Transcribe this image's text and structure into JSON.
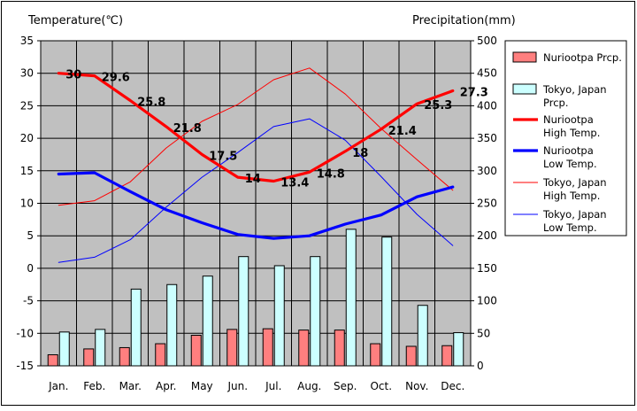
{
  "chart_data": {
    "type": "bar+line",
    "y_left_label": "Temperature(℃)",
    "y_right_label": "Precipitation(mm)",
    "y_left_range": [
      -15,
      35
    ],
    "y_left_ticks": [
      "35",
      "30",
      "25",
      "20",
      "15",
      "10",
      "5",
      "0",
      "-5",
      "-10",
      "-15"
    ],
    "y_right_range": [
      0,
      500
    ],
    "y_right_ticks": [
      "500",
      "450",
      "400",
      "350",
      "300",
      "250",
      "200",
      "150",
      "100",
      "50",
      "0"
    ],
    "grid": true,
    "legend_position": "right",
    "categories": [
      "Jan.",
      "Feb.",
      "Mar.",
      "Apr.",
      "May",
      "Jun.",
      "Jul.",
      "Aug.",
      "Sep.",
      "Oct.",
      "Nov.",
      "Dec."
    ],
    "bar_series": [
      {
        "name": "Nuriootpa Prcp.",
        "color": "#ff7f7f",
        "values": [
          17,
          26,
          28,
          34,
          47,
          56,
          57,
          55,
          55,
          34,
          30,
          31
        ]
      },
      {
        "name": "Tokyo, Japan Prcp.",
        "color": "#ccffff",
        "values": [
          52,
          56,
          118,
          125,
          138,
          168,
          154,
          168,
          210,
          198,
          93,
          51
        ]
      }
    ],
    "line_series": [
      {
        "name": "Nuriootpa High Temp.",
        "color": "#ff0000",
        "style": "thick",
        "values": [
          30,
          29.6,
          25.8,
          21.8,
          17.5,
          14,
          13.4,
          14.8,
          18,
          21.4,
          25.3,
          27.3
        ],
        "labels": [
          "30",
          "29.6",
          "25.8",
          "21.8",
          "17.5",
          "14",
          "13.4",
          "14.8",
          "18",
          "21.4",
          "25.3",
          "27.3"
        ]
      },
      {
        "name": "Nuriootpa Low Temp.",
        "color": "#0000ff",
        "style": "thick",
        "values": [
          14.5,
          14.7,
          11.8,
          9,
          7,
          5.2,
          4.6,
          5,
          6.8,
          8.2,
          11,
          12.5
        ]
      },
      {
        "name": "Tokyo, Japan High Temp.",
        "color": "#ff0000",
        "style": "thin",
        "values": [
          9.7,
          10.4,
          13.3,
          18.5,
          22.6,
          25.2,
          29,
          30.8,
          26.8,
          21.5,
          16.7,
          12
        ]
      },
      {
        "name": "Tokyo, Japan Low Temp.",
        "color": "#0000ff",
        "style": "thin",
        "values": [
          0.9,
          1.7,
          4.4,
          9.4,
          14,
          17.8,
          21.8,
          23,
          19.7,
          14.1,
          8.3,
          3.5
        ]
      }
    ],
    "legend": [
      {
        "key": "nuriootpa-prcp",
        "kind": "bar",
        "color": "#ff7f7f",
        "text": [
          "Nuriootpa Prcp."
        ]
      },
      {
        "key": "tokyo-prcp",
        "kind": "bar",
        "color": "#ccffff",
        "text": [
          "Tokyo, Japan",
          "Prcp."
        ]
      },
      {
        "key": "nuriootpa-high",
        "kind": "thick",
        "color": "#ff0000",
        "text": [
          "Nuriootpa",
          "High Temp."
        ]
      },
      {
        "key": "nuriootpa-low",
        "kind": "thick",
        "color": "#0000ff",
        "text": [
          "Nuriootpa",
          "Low Temp."
        ]
      },
      {
        "key": "tokyo-high",
        "kind": "thin",
        "color": "#ff0000",
        "text": [
          "Tokyo, Japan",
          "High Temp."
        ]
      },
      {
        "key": "tokyo-low",
        "kind": "thin",
        "color": "#0000ff",
        "text": [
          "Tokyo, Japan",
          "Low Temp."
        ]
      }
    ],
    "plot_background": "#c0c0c0"
  }
}
